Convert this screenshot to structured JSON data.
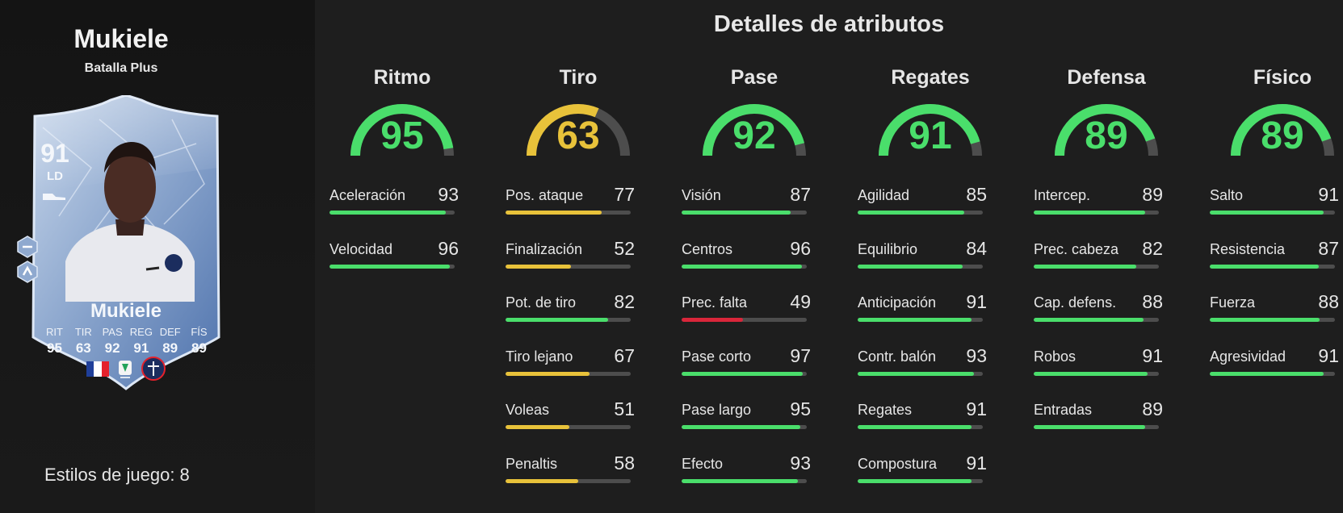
{
  "player": {
    "name": "Mukiele",
    "version": "Batalla Plus",
    "rating": "91",
    "position": "LD",
    "card_name": "Mukiele",
    "stat_labels": [
      "RIT",
      "TIR",
      "PAS",
      "REG",
      "DEF",
      "FÍS"
    ],
    "stat_values": [
      "95",
      "63",
      "92",
      "91",
      "89",
      "89"
    ],
    "playstyles_text": "Estilos de juego: 8"
  },
  "page_title": "Detalles de atributos",
  "colors": {
    "green": "#4ade6b",
    "yellow": "#e8c23a",
    "red": "#d9263a",
    "track": "#4d4d4d"
  },
  "categories": [
    {
      "name": "Ritmo",
      "value": 95,
      "attributes": [
        {
          "label": "Aceleración",
          "value": 93
        },
        {
          "label": "Velocidad",
          "value": 96
        }
      ]
    },
    {
      "name": "Tiro",
      "value": 63,
      "attributes": [
        {
          "label": "Pos. ataque",
          "value": 77
        },
        {
          "label": "Finalización",
          "value": 52
        },
        {
          "label": "Pot. de tiro",
          "value": 82
        },
        {
          "label": "Tiro lejano",
          "value": 67
        },
        {
          "label": "Voleas",
          "value": 51
        },
        {
          "label": "Penaltis",
          "value": 58
        }
      ]
    },
    {
      "name": "Pase",
      "value": 92,
      "attributes": [
        {
          "label": "Visión",
          "value": 87
        },
        {
          "label": "Centros",
          "value": 96
        },
        {
          "label": "Prec. falta",
          "value": 49
        },
        {
          "label": "Pase corto",
          "value": 97
        },
        {
          "label": "Pase largo",
          "value": 95
        },
        {
          "label": "Efecto",
          "value": 93
        }
      ]
    },
    {
      "name": "Regates",
      "value": 91,
      "attributes": [
        {
          "label": "Agilidad",
          "value": 85
        },
        {
          "label": "Equilibrio",
          "value": 84
        },
        {
          "label": "Anticipación",
          "value": 91
        },
        {
          "label": "Contr. balón",
          "value": 93
        },
        {
          "label": "Regates",
          "value": 91
        },
        {
          "label": "Compostura",
          "value": 91
        }
      ]
    },
    {
      "name": "Defensa",
      "value": 89,
      "attributes": [
        {
          "label": "Intercep.",
          "value": 89
        },
        {
          "label": "Prec. cabeza",
          "value": 82
        },
        {
          "label": "Cap. defens.",
          "value": 88
        },
        {
          "label": "Robos",
          "value": 91
        },
        {
          "label": "Entradas",
          "value": 89
        }
      ]
    },
    {
      "name": "Físico",
      "value": 89,
      "attributes": [
        {
          "label": "Salto",
          "value": 91
        },
        {
          "label": "Resistencia",
          "value": 87
        },
        {
          "label": "Fuerza",
          "value": 88
        },
        {
          "label": "Agresividad",
          "value": 91
        }
      ]
    }
  ]
}
